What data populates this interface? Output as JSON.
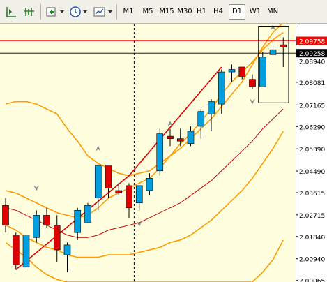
{
  "toolbar": {
    "icons": [
      "line-chart-icon",
      "tools-icon",
      "add-chart-icon",
      "clock-icon",
      "template-icon"
    ],
    "timeframes": [
      "M1",
      "M5",
      "M15",
      "M30",
      "H1",
      "H4",
      "D1",
      "W1",
      "MN"
    ],
    "active_timeframe": "D1"
  },
  "chart_data": {
    "type": "candlestick",
    "ylim": [
      2.0,
      2.1045
    ],
    "y_ticks": [
      "2.08940",
      "2.08081",
      "2.07165",
      "2.06290",
      "2.05390",
      "2.04490",
      "2.03615",
      "2.02715",
      "2.01840",
      "2.00940",
      "2.00065"
    ],
    "price_lines": [
      {
        "label": "2.09758",
        "value": 2.09758,
        "color": "#ff0000"
      },
      {
        "label": "2.09258",
        "value": 2.09258,
        "color": "#000000"
      }
    ],
    "candles": [
      {
        "o": 2.031,
        "h": 2.034,
        "l": 2.02,
        "c": 2.023
      },
      {
        "o": 2.019,
        "h": 2.02,
        "l": 2.005,
        "c": 2.007
      },
      {
        "o": 2.006,
        "h": 2.027,
        "l": 2.005,
        "c": 2.019
      },
      {
        "o": 2.018,
        "h": 2.029,
        "l": 2.016,
        "c": 2.027
      },
      {
        "o": 2.027,
        "h": 2.03,
        "l": 2.022,
        "c": 2.023
      },
      {
        "o": 2.023,
        "h": 2.027,
        "l": 2.008,
        "c": 2.013
      },
      {
        "o": 2.011,
        "h": 2.016,
        "l": 2.004,
        "c": 2.015
      },
      {
        "o": 2.02,
        "h": 2.03,
        "l": 2.017,
        "c": 2.029
      },
      {
        "o": 2.024,
        "h": 2.032,
        "l": 2.024,
        "c": 2.031
      },
      {
        "o": 2.034,
        "h": 2.047,
        "l": 2.029,
        "c": 2.047
      },
      {
        "o": 2.047,
        "h": 2.047,
        "l": 2.034,
        "c": 2.038
      },
      {
        "o": 2.037,
        "h": 2.04,
        "l": 2.035,
        "c": 2.036
      },
      {
        "o": 2.039,
        "h": 2.04,
        "l": 2.026,
        "c": 2.03
      },
      {
        "o": 2.032,
        "h": 2.039,
        "l": 2.029,
        "c": 2.039
      },
      {
        "o": 2.037,
        "h": 2.044,
        "l": 2.035,
        "c": 2.042
      },
      {
        "o": 2.045,
        "h": 2.062,
        "l": 2.043,
        "c": 2.06
      },
      {
        "o": 2.059,
        "h": 2.062,
        "l": 2.055,
        "c": 2.058
      },
      {
        "o": 2.058,
        "h": 2.062,
        "l": 2.055,
        "c": 2.057
      },
      {
        "o": 2.056,
        "h": 2.063,
        "l": 2.055,
        "c": 2.061
      },
      {
        "o": 2.063,
        "h": 2.07,
        "l": 2.058,
        "c": 2.069
      },
      {
        "o": 2.068,
        "h": 2.074,
        "l": 2.061,
        "c": 2.073
      },
      {
        "o": 2.072,
        "h": 2.086,
        "l": 2.068,
        "c": 2.085
      },
      {
        "o": 2.085,
        "h": 2.088,
        "l": 2.081,
        "c": 2.086
      },
      {
        "o": 2.087,
        "h": 2.087,
        "l": 2.082,
        "c": 2.083
      },
      {
        "o": 2.082,
        "h": 2.084,
        "l": 2.078,
        "c": 2.079
      },
      {
        "o": 2.079,
        "h": 2.093,
        "l": 2.079,
        "c": 2.091
      },
      {
        "o": 2.092,
        "h": 2.099,
        "l": 2.088,
        "c": 2.094
      },
      {
        "o": 2.096,
        "h": 2.099,
        "l": 2.087,
        "c": 2.095
      }
    ],
    "bands": [
      {
        "name": "outer-upper",
        "color": "#ff9900",
        "values": [
          2.072,
          2.073,
          2.073,
          2.072,
          2.07,
          2.068,
          2.062,
          2.057,
          2.051,
          2.048,
          2.046,
          2.044,
          2.043,
          2.044,
          2.045,
          2.048,
          2.051,
          2.054,
          2.058,
          2.062,
          2.066,
          2.071,
          2.076,
          2.081,
          2.088,
          2.095,
          2.101,
          2.105
        ]
      },
      {
        "name": "inner-upper",
        "color": "#ff9900",
        "values": [
          2.037,
          2.036,
          2.034,
          2.032,
          2.03,
          2.028,
          2.027,
          2.026,
          2.027,
          2.03,
          2.034,
          2.036,
          2.038,
          2.04,
          2.042,
          2.046,
          2.051,
          2.056,
          2.06,
          2.065,
          2.07,
          2.076,
          2.081,
          2.085,
          2.089,
          2.094,
          2.098,
          2.101
        ]
      },
      {
        "name": "middle",
        "color": "#cc0000",
        "values": [
          2.03,
          2.029,
          2.027,
          2.025,
          2.023,
          2.021,
          2.019,
          2.018,
          2.018,
          2.019,
          2.021,
          2.022,
          2.023,
          2.024,
          2.026,
          2.028,
          2.03,
          2.032,
          2.035,
          2.038,
          2.041,
          2.045,
          2.049,
          2.053,
          2.057,
          2.062,
          2.066,
          2.07
        ]
      },
      {
        "name": "inner-lower",
        "color": "#ff9900",
        "values": [
          2.023,
          2.021,
          2.018,
          2.016,
          2.014,
          2.013,
          2.011,
          2.01,
          2.01,
          2.01,
          2.011,
          2.011,
          2.011,
          2.012,
          2.013,
          2.014,
          2.016,
          2.017,
          2.019,
          2.022,
          2.025,
          2.029,
          2.033,
          2.037,
          2.042,
          2.048,
          2.054,
          2.061
        ]
      },
      {
        "name": "outer-lower",
        "color": "#ff9900",
        "values": [
          2.016,
          2.013,
          2.01,
          2.006,
          2.003,
          2.001,
          2.0,
          2.0,
          2.0,
          2.0,
          2.0,
          2.0,
          2.0,
          2.0,
          2.0,
          2.0,
          2.0,
          2.0,
          2.0,
          2.0,
          2.0,
          2.0,
          2.0,
          2.0,
          2.0,
          2.004,
          2.009,
          2.017
        ]
      }
    ],
    "trendline": {
      "color": "#dd0000",
      "points": [
        [
          1,
          2.005
        ],
        [
          12,
          2.043
        ],
        [
          21,
          2.087
        ]
      ]
    },
    "fractals_up": [
      [
        9,
        2.054
      ],
      [
        16,
        2.064
      ],
      [
        26,
        2.103
      ]
    ],
    "fractals_down": [
      [
        3,
        2.038
      ],
      [
        13,
        2.0235
      ],
      [
        24,
        2.073
      ]
    ],
    "selection_box": {
      "from_index": 25,
      "to_index": 28,
      "high": 2.1035,
      "low": 2.0725
    },
    "period_separator_index": 12.5,
    "colors": {
      "background": "#ffffe0",
      "bull": "#00a0e0",
      "bear": "#e00000",
      "wick": "#000000",
      "axis_bg": "#ffffff",
      "grid_text": "#000000"
    }
  }
}
